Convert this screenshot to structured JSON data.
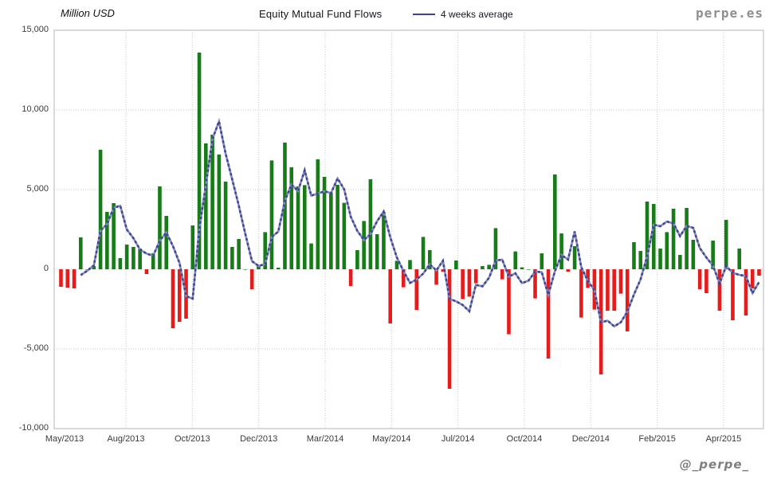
{
  "header": {
    "y_axis_title": "Million USD",
    "title": "Equity Mutual Fund Flows",
    "legend_label": "4 weeks average",
    "watermark_top": "perpe.es",
    "watermark_bottom": "@_perpe_"
  },
  "colors": {
    "positive_bar": "#177c17",
    "negative_bar": "#e51c1c",
    "average_line_dark": "#3d4492",
    "average_line_light": "#8589bd",
    "gridline": "#c9c9c9",
    "plot_border": "#b5b5b5",
    "tick_text": "#3a3a3a"
  },
  "chart_data": {
    "type": "bar",
    "title": "Equity Mutual Fund Flows",
    "unit_label": "Million USD",
    "frequency": "weekly",
    "legend_position": "top",
    "grid": "dotted",
    "ylim": [
      -10000,
      15000
    ],
    "y_tick_labels": [
      "15,000",
      "10,000",
      "5,000",
      "0",
      "-5,000",
      "-10,000"
    ],
    "y_tick_values": [
      15000,
      10000,
      5000,
      0,
      -5000,
      -10000
    ],
    "x_tick_labels": [
      "May/2013",
      "Aug/2013",
      "Oct/2013",
      "Dec/2013",
      "Mar/2014",
      "May/2014",
      "Jul/2014",
      "Oct/2014",
      "Dec/2014",
      "Feb/2015",
      "Apr/2015"
    ],
    "series": [
      {
        "name": "Equity Mutual Fund Flows",
        "type": "bar",
        "color_rule": "green if positive, red if negative"
      },
      {
        "name": "4 weeks average",
        "type": "line",
        "derivation": "trailing 4-week moving average of the weekly bars"
      }
    ],
    "weekly_flows_million_usd": [
      -1100,
      -1150,
      -1200,
      2000,
      0,
      200,
      7500,
      3600,
      4150,
      700,
      1550,
      1400,
      1300,
      -300,
      1000,
      5200,
      3350,
      -3700,
      -3300,
      -3100,
      2750,
      13600,
      7900,
      8450,
      7200,
      5500,
      1400,
      1900,
      0,
      -1250,
      200,
      2330,
      6830,
      100,
      7950,
      6400,
      5200,
      5280,
      1620,
      6900,
      5800,
      4800,
      5300,
      4170,
      -1050,
      1200,
      3030,
      5650,
      2200,
      3600,
      -3400,
      530,
      -1130,
      580,
      -2550,
      2030,
      1200,
      -970,
      -150,
      -7500,
      550,
      -1870,
      -1720,
      -880,
      200,
      280,
      2580,
      -630,
      -4080,
      1120,
      120,
      0,
      -1830,
      1000,
      -5600,
      5950,
      2250,
      -150,
      1450,
      -3030,
      -1170,
      -2530,
      -6600,
      -2600,
      -2600,
      -1530,
      -3900,
      1700,
      1150,
      4250,
      4100,
      1300,
      2330,
      3800,
      900,
      3850,
      1850,
      -1250,
      -1500,
      1800,
      -2600,
      3100,
      -3200,
      1300,
      -2900,
      -1200,
      -400
    ]
  }
}
